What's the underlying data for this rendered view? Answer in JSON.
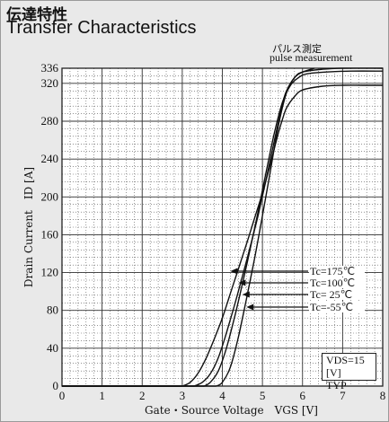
{
  "title": {
    "japanese": "伝達特性",
    "english": "Transfer Characteristics"
  },
  "measurement_note": {
    "japanese": "パルス測定",
    "english": "pulse measurement"
  },
  "conditions": {
    "vds": "VDS=15 [V]",
    "mode": "TYP"
  },
  "chart_data": {
    "type": "line",
    "xlabel": "Gate・Source Voltage　VGS [V]",
    "ylabel": "Drain Current　ID [A]",
    "xlim": [
      0,
      8
    ],
    "ylim": [
      0,
      336
    ],
    "x_ticks": [
      0,
      1,
      2,
      3,
      4,
      5,
      6,
      7,
      8
    ],
    "y_ticks": [
      0,
      40,
      80,
      120,
      160,
      200,
      240,
      280,
      320,
      336
    ],
    "grid": true,
    "series": [
      {
        "name": "Tc=175℃",
        "x": [
          3.0,
          3.2,
          3.4,
          3.6,
          3.8,
          4.0,
          4.2,
          4.4,
          4.6,
          4.8,
          5.0,
          5.2,
          5.4,
          5.5,
          5.6,
          5.8,
          6.0,
          6.5,
          7.0,
          7.5,
          8.0
        ],
        "y": [
          0,
          4,
          14,
          30,
          50,
          72,
          98,
          124,
          150,
          177,
          204,
          235,
          268,
          282,
          294,
          306,
          313,
          317,
          318,
          318,
          318
        ]
      },
      {
        "name": "Tc=100℃",
        "x": [
          3.3,
          3.5,
          3.7,
          3.9,
          4.1,
          4.3,
          4.5,
          4.7,
          4.9,
          5.1,
          5.3,
          5.5,
          5.6,
          5.8,
          6.0,
          6.3
        ],
        "y": [
          0,
          4,
          13,
          30,
          56,
          85,
          116,
          148,
          182,
          220,
          260,
          298,
          312,
          326,
          332,
          336
        ]
      },
      {
        "name": "Tc= 25℃",
        "x": [
          3.55,
          3.7,
          3.9,
          4.1,
          4.3,
          4.5,
          4.7,
          4.9,
          5.1,
          5.3,
          5.5,
          5.7,
          5.9,
          6.1,
          6.6,
          7.2,
          8.0
        ],
        "y": [
          0,
          4,
          16,
          40,
          72,
          108,
          146,
          186,
          228,
          268,
          300,
          318,
          326,
          330,
          332,
          333,
          333
        ]
      },
      {
        "name": "Tc=-55℃",
        "x": [
          3.85,
          4.0,
          4.2,
          4.4,
          4.6,
          4.8,
          5.0,
          5.2,
          5.4,
          5.6,
          5.8,
          6.0,
          6.5,
          7.0,
          8.0
        ],
        "y": [
          0,
          4,
          20,
          52,
          92,
          134,
          180,
          228,
          276,
          310,
          326,
          332,
          335,
          336,
          336
        ]
      }
    ],
    "annotations": [
      {
        "label": "Tc=175℃",
        "x": 4.2,
        "y": 118
      },
      {
        "label": "Tc=100℃",
        "x": 4.4,
        "y": 105
      },
      {
        "label": "Tc= 25℃",
        "x": 4.5,
        "y": 90
      },
      {
        "label": "Tc=-55℃",
        "x": 4.6,
        "y": 80
      }
    ]
  }
}
